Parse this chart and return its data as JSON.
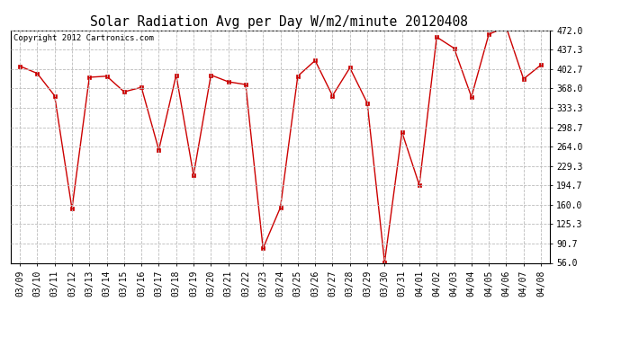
{
  "title": "Solar Radiation Avg per Day W/m2/minute 20120408",
  "copyright": "Copyright 2012 Cartronics.com",
  "labels": [
    "03/09",
    "03/10",
    "03/11",
    "03/12",
    "03/13",
    "03/14",
    "03/15",
    "03/16",
    "03/17",
    "03/18",
    "03/19",
    "03/20",
    "03/21",
    "03/22",
    "03/23",
    "03/24",
    "03/25",
    "03/26",
    "03/27",
    "03/28",
    "03/29",
    "03/30",
    "03/31",
    "04/01",
    "04/02",
    "04/03",
    "04/04",
    "04/05",
    "04/06",
    "04/07",
    "04/08"
  ],
  "values": [
    408.0,
    395.0,
    355.0,
    153.0,
    388.0,
    390.0,
    362.0,
    370.0,
    258.0,
    392.0,
    213.0,
    392.0,
    380.0,
    375.0,
    82.0,
    155.0,
    390.0,
    418.0,
    355.0,
    405.0,
    342.0,
    57.0,
    290.0,
    195.0,
    460.0,
    440.0,
    353.0,
    465.0,
    478.0,
    385.0,
    410.0
  ],
  "line_color": "#cc0000",
  "marker": "s",
  "markersize": 2.5,
  "background_color": "#ffffff",
  "grid_color": "#bbbbbb",
  "ylim": [
    56.0,
    472.0
  ],
  "yticks": [
    56.0,
    90.7,
    125.3,
    160.0,
    194.7,
    229.3,
    264.0,
    298.7,
    333.3,
    368.0,
    402.7,
    437.3,
    472.0
  ],
  "title_fontsize": 10.5,
  "copyright_fontsize": 6.5,
  "tick_fontsize": 7.0
}
